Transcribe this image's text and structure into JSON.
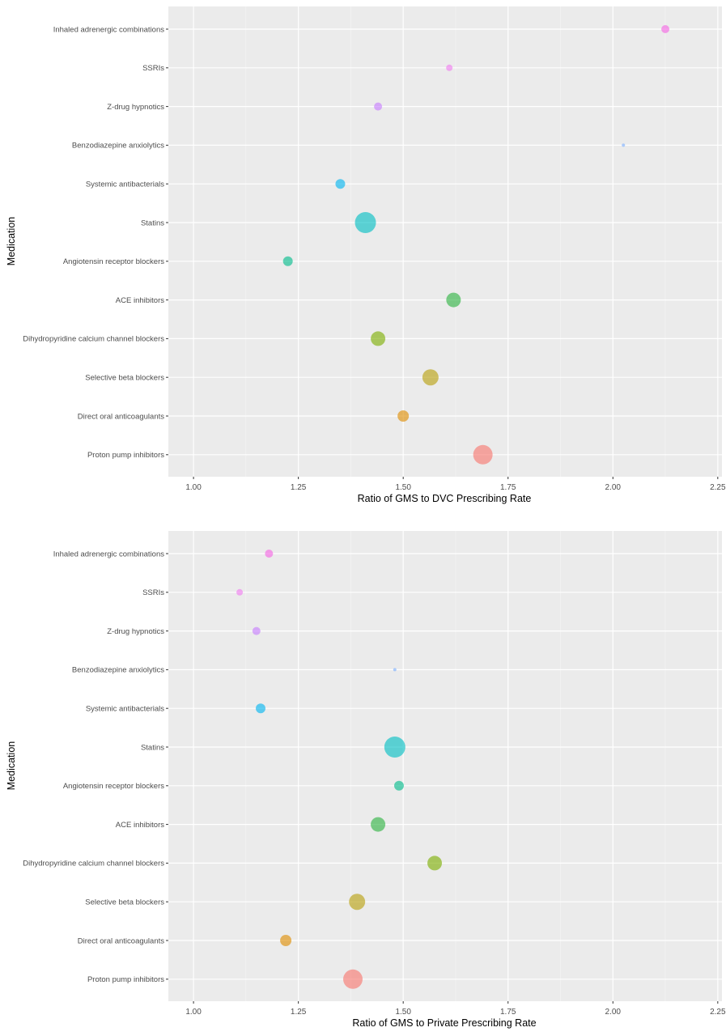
{
  "chart_data": [
    {
      "type": "scatter",
      "xlabel": "Ratio of GMS to DVC Prescribing Rate",
      "ylabel": "Medication",
      "xlim": [
        0.94,
        2.26
      ],
      "xticks": [
        "1.00",
        "1.25",
        "1.50",
        "1.75",
        "2.00",
        "2.25"
      ],
      "grid": true,
      "categories": [
        "Inhaled adrenergic combinations",
        "SSRIs",
        "Z-drug hypnotics",
        "Benzodiazepine anxiolytics",
        "Systemic antibacterials",
        "Statins",
        "Angiotensin receptor blockers",
        "ACE inhibitors",
        "Dihydropyridine calcium channel blockers",
        "Selective beta blockers",
        "Direct oral anticoagulants",
        "Proton pump inhibitors"
      ],
      "points": [
        {
          "category": "Inhaled adrenergic combinations",
          "x": 2.125,
          "size": 5,
          "color": "#f564e3"
        },
        {
          "category": "SSRIs",
          "x": 1.61,
          "size": 4,
          "color": "#f17cf0"
        },
        {
          "category": "Z-drug hypnotics",
          "x": 1.44,
          "size": 5,
          "color": "#c77cff"
        },
        {
          "category": "Benzodiazepine anxiolytics",
          "x": 2.025,
          "size": 2,
          "color": "#7cb0ff"
        },
        {
          "category": "Systemic antibacterials",
          "x": 1.35,
          "size": 6,
          "color": "#00b4f0"
        },
        {
          "category": "Statins",
          "x": 1.41,
          "size": 13,
          "color": "#00bfc4"
        },
        {
          "category": "Angiotensin receptor blockers",
          "x": 1.225,
          "size": 6,
          "color": "#00bc8a"
        },
        {
          "category": "ACE inhibitors",
          "x": 1.62,
          "size": 9,
          "color": "#2db341"
        },
        {
          "category": "Dihydropyridine calcium channel blockers",
          "x": 1.44,
          "size": 9,
          "color": "#7cae00"
        },
        {
          "category": "Selective beta blockers",
          "x": 1.565,
          "size": 10,
          "color": "#b8a00b"
        },
        {
          "category": "Direct oral anticoagulants",
          "x": 1.5,
          "size": 7,
          "color": "#de8c00"
        },
        {
          "category": "Proton pump inhibitors",
          "x": 1.69,
          "size": 12,
          "color": "#f8766d"
        }
      ]
    },
    {
      "type": "scatter",
      "xlabel": "Ratio of GMS to Private Prescribing Rate",
      "ylabel": "Medication",
      "xlim": [
        0.94,
        2.26
      ],
      "xticks": [
        "1.00",
        "1.25",
        "1.50",
        "1.75",
        "2.00",
        "2.25"
      ],
      "grid": true,
      "categories": [
        "Inhaled adrenergic combinations",
        "SSRIs",
        "Z-drug hypnotics",
        "Benzodiazepine anxiolytics",
        "Systemic antibacterials",
        "Statins",
        "Angiotensin receptor blockers",
        "ACE inhibitors",
        "Dihydropyridine calcium channel blockers",
        "Selective beta blockers",
        "Direct oral anticoagulants",
        "Proton pump inhibitors"
      ],
      "points": [
        {
          "category": "Inhaled adrenergic combinations",
          "x": 1.18,
          "size": 5,
          "color": "#f564e3"
        },
        {
          "category": "SSRIs",
          "x": 1.11,
          "size": 4,
          "color": "#f17cf0"
        },
        {
          "category": "Z-drug hypnotics",
          "x": 1.15,
          "size": 5,
          "color": "#c77cff"
        },
        {
          "category": "Benzodiazepine anxiolytics",
          "x": 1.48,
          "size": 2,
          "color": "#7cb0ff"
        },
        {
          "category": "Systemic antibacterials",
          "x": 1.16,
          "size": 6,
          "color": "#00b4f0"
        },
        {
          "category": "Statins",
          "x": 1.48,
          "size": 13,
          "color": "#00bfc4"
        },
        {
          "category": "Angiotensin receptor blockers",
          "x": 1.49,
          "size": 6,
          "color": "#00bc8a"
        },
        {
          "category": "ACE inhibitors",
          "x": 1.44,
          "size": 9,
          "color": "#2db341"
        },
        {
          "category": "Dihydropyridine calcium channel blockers",
          "x": 1.575,
          "size": 9,
          "color": "#7cae00"
        },
        {
          "category": "Selective beta blockers",
          "x": 1.39,
          "size": 10,
          "color": "#b8a00b"
        },
        {
          "category": "Direct oral anticoagulants",
          "x": 1.22,
          "size": 7,
          "color": "#de8c00"
        },
        {
          "category": "Proton pump inhibitors",
          "x": 1.38,
          "size": 12,
          "color": "#f8766d"
        }
      ]
    }
  ]
}
